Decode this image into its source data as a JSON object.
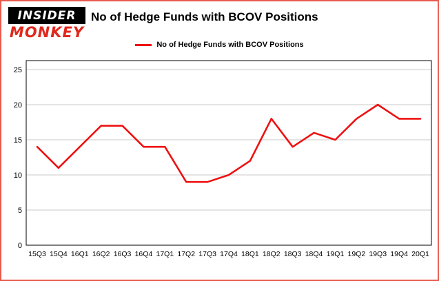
{
  "page": {
    "border_color": "#e8584c",
    "background": "#ffffff"
  },
  "logo": {
    "line1": "INSIDER",
    "line2": "MONKEY",
    "bg": "#000000",
    "line1_color": "#ffffff",
    "line2_color": "#e0281c"
  },
  "header": {
    "title": "No of Hedge Funds with BCOV Positions"
  },
  "legend": {
    "label": "No of Hedge Funds with BCOV Positions"
  },
  "chart_data": {
    "type": "line",
    "title": "No of Hedge Funds with BCOV Positions",
    "series_name": "No of Hedge Funds with BCOV Positions",
    "categories": [
      "15Q3",
      "15Q4",
      "16Q1",
      "16Q2",
      "16Q3",
      "16Q4",
      "17Q1",
      "17Q2",
      "17Q3",
      "17Q4",
      "18Q1",
      "18Q2",
      "18Q3",
      "18Q4",
      "19Q1",
      "19Q2",
      "19Q3",
      "19Q4",
      "20Q1"
    ],
    "values": [
      14,
      11,
      14,
      17,
      17,
      14,
      14,
      9,
      9,
      10,
      12,
      18,
      14,
      16,
      15,
      18,
      20,
      18,
      18
    ],
    "line_color": "#ee1111",
    "ylim": [
      0,
      25
    ],
    "yticks": [
      0,
      5,
      10,
      15,
      20,
      25
    ],
    "grid": true,
    "grid_color": "#c9c9c9",
    "legend_position": "top"
  }
}
